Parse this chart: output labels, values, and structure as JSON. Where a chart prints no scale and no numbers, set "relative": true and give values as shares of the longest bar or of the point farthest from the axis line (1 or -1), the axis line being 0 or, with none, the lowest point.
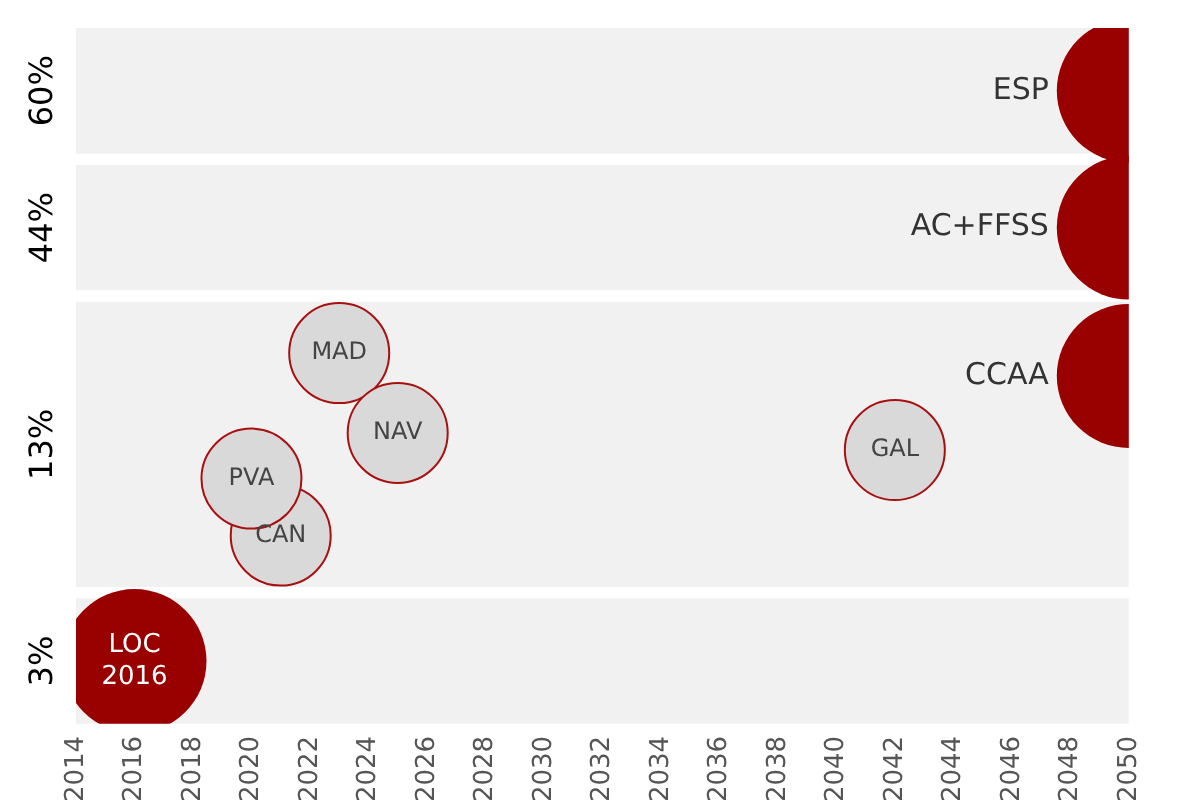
{
  "chart_data": {
    "type": "scatter",
    "relative": true,
    "xlim": [
      2014,
      2050
    ],
    "xticks": [
      2014,
      2016,
      2018,
      2020,
      2022,
      2024,
      2026,
      2028,
      2030,
      2032,
      2034,
      2036,
      2038,
      2040,
      2042,
      2044,
      2046,
      2048,
      2050
    ],
    "marker": "circle",
    "series": [
      {
        "color": "#d9d9d9",
        "x": [
          2023,
          2025,
          2042,
          2021,
          2020
        ],
        "values": [
          0.54,
          0.4,
          0.37,
          0.22,
          0.32
        ]
      },
      {
        "color": "#990000",
        "x": [
          2050,
          2050,
          2050,
          2016
        ],
        "values": [
          1,
          0.76,
          0.5,
          0
        ]
      }
    ],
    "bands": [
      {
        "axis": "y",
        "from": 0.89,
        "to": 1.11,
        "color": "#f1f1f1",
        "label": "60%"
      },
      {
        "axis": "y",
        "from": 0.65,
        "to": 0.87,
        "color": "#f1f1f1",
        "label": "44%"
      },
      {
        "axis": "y",
        "from": 0.13,
        "to": 0.63,
        "color": "#f1f1f1",
        "label": "13%"
      },
      {
        "axis": "y",
        "from": -0.11,
        "to": 0.11,
        "color": "#f1f1f1",
        "label": "3%"
      }
    ],
    "annotations": [
      {
        "text": "ESP",
        "x": 2050,
        "y": 1
      },
      {
        "text": "AC+FFSS",
        "x": 2050,
        "y": 0.76
      },
      {
        "text": "CCAA",
        "x": 2050,
        "y": 0.5
      },
      {
        "text": "LOC 2016",
        "x": 2016,
        "y": 0
      },
      {
        "text": "MAD",
        "x": 2023,
        "y": 0.54
      },
      {
        "text": "NAV",
        "x": 2025,
        "y": 0.4
      },
      {
        "text": "GAL",
        "x": 2042,
        "y": 0.37
      },
      {
        "text": "CAN",
        "x": 2021,
        "y": 0.22
      },
      {
        "text": "PVA",
        "x": 2020,
        "y": 0.32
      }
    ]
  }
}
